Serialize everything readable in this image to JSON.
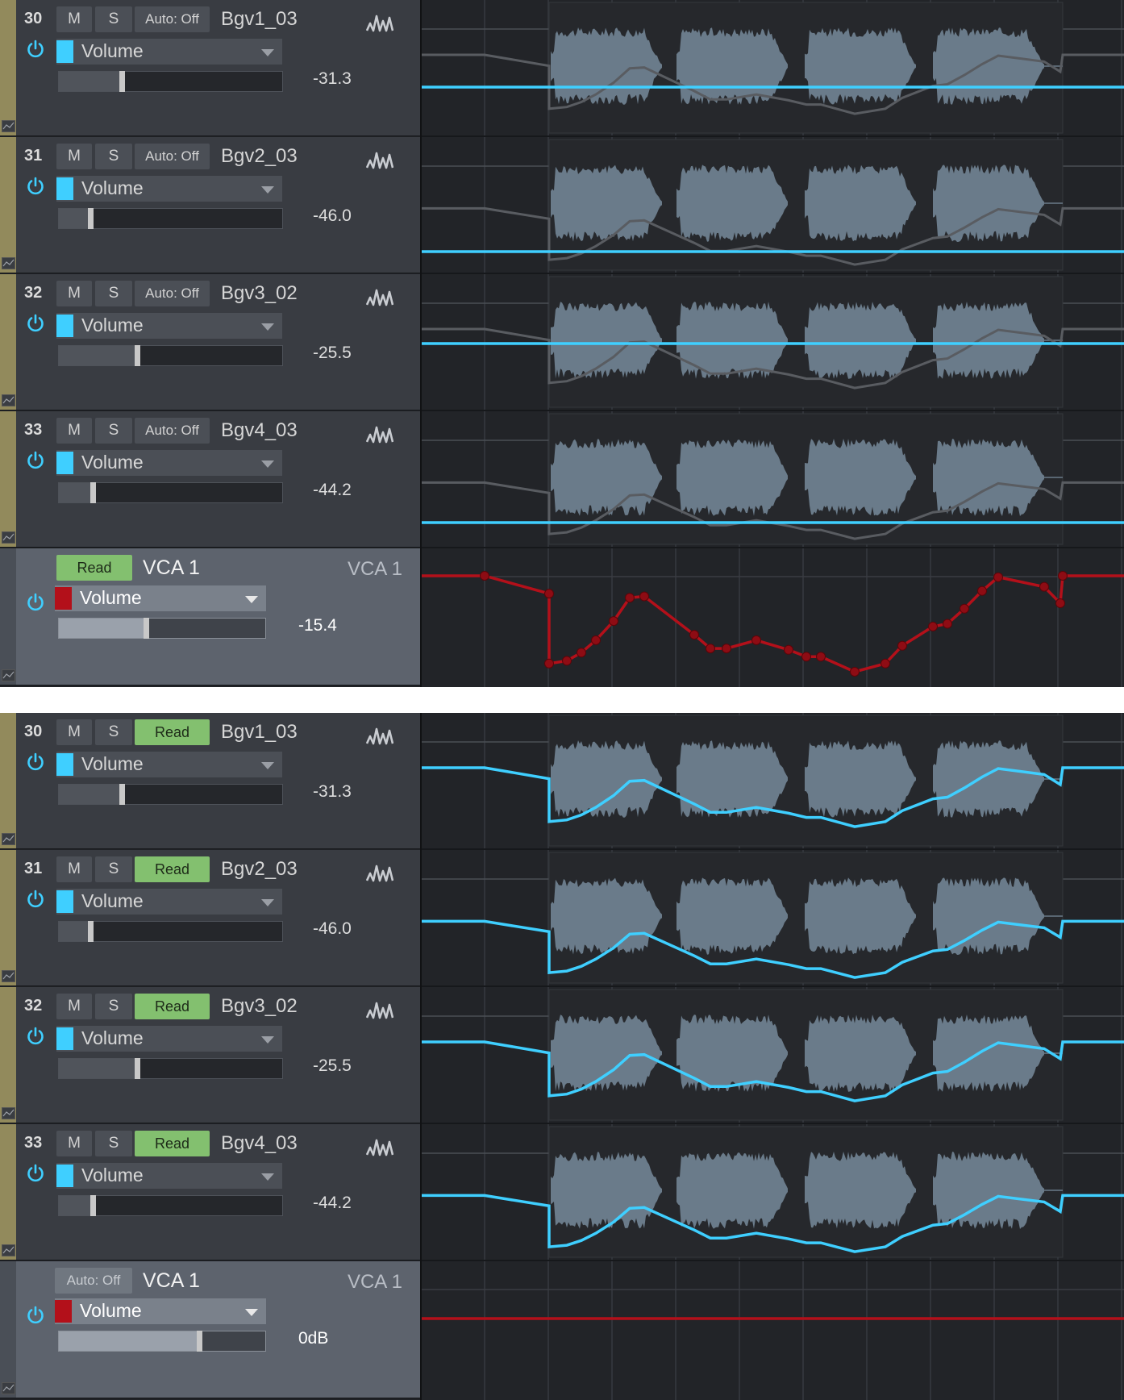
{
  "colors": {
    "background": "#202226",
    "track_header": "#393c42",
    "vca_header": "#5d636d",
    "track_color": "#3fcfff",
    "vca_color": "#b3101a",
    "read_button": "#83c06f",
    "waveform": "#6a7b8a",
    "automation_inactive": "#595c61",
    "automation_active": "#3fcfff",
    "vca_automation": "#b3101a"
  },
  "icons": {
    "power": "power-icon",
    "waveform_toggle": "waveform-icon",
    "dropdown": "chevron-down-icon",
    "automation_lane": "automation-lane-icon"
  },
  "panels": [
    {
      "id": "top",
      "tracks": [
        {
          "number": "30",
          "mute": "M",
          "solo": "S",
          "automation": "Auto: Off",
          "name": "Bgv1_03",
          "parameter": "Volume",
          "value": "-31.3",
          "fader_level": 0.28
        },
        {
          "number": "31",
          "mute": "M",
          "solo": "S",
          "automation": "Auto: Off",
          "name": "Bgv2_03",
          "parameter": "Volume",
          "value": "-46.0",
          "fader_level": 0.14
        },
        {
          "number": "32",
          "mute": "M",
          "solo": "S",
          "automation": "Auto: Off",
          "name": "Bgv3_02",
          "parameter": "Volume",
          "value": "-25.5",
          "fader_level": 0.35
        },
        {
          "number": "33",
          "mute": "M",
          "solo": "S",
          "automation": "Auto: Off",
          "name": "Bgv4_03",
          "parameter": "Volume",
          "value": "-44.2",
          "fader_level": 0.15
        }
      ],
      "vca": {
        "automation": "Read",
        "name": "VCA 1",
        "label": "VCA 1",
        "parameter": "Volume",
        "value": "-15.4",
        "fader_level": 0.42
      }
    },
    {
      "id": "bottom",
      "tracks": [
        {
          "number": "30",
          "mute": "M",
          "solo": "S",
          "automation": "Read",
          "name": "Bgv1_03",
          "parameter": "Volume",
          "value": "-31.3",
          "fader_level": 0.28
        },
        {
          "number": "31",
          "mute": "M",
          "solo": "S",
          "automation": "Read",
          "name": "Bgv2_03",
          "parameter": "Volume",
          "value": "-46.0",
          "fader_level": 0.14
        },
        {
          "number": "32",
          "mute": "M",
          "solo": "S",
          "automation": "Read",
          "name": "Bgv3_02",
          "parameter": "Volume",
          "value": "-25.5",
          "fader_level": 0.35
        },
        {
          "number": "33",
          "mute": "M",
          "solo": "S",
          "automation": "Read",
          "name": "Bgv4_03",
          "parameter": "Volume",
          "value": "-44.2",
          "fader_level": 0.15
        }
      ],
      "vca": {
        "automation": "Auto: Off",
        "name": "VCA 1",
        "label": "VCA 1",
        "parameter": "Volume",
        "value": "0dB",
        "fader_level": 0.68
      }
    }
  ]
}
